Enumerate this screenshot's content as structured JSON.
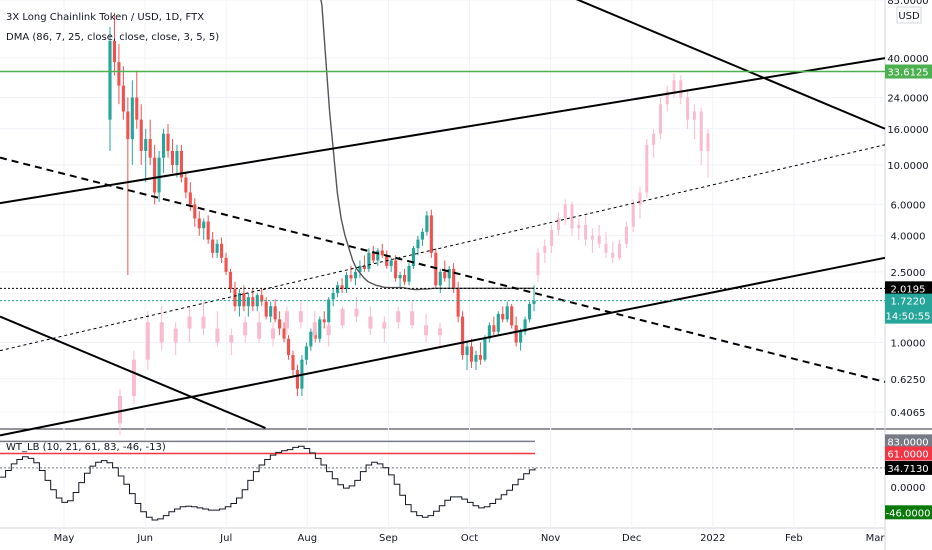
{
  "chart_data": [
    {
      "type": "candlestick",
      "title": "3X Long Chainlink Token / USD, 1D, FTX",
      "indicator_label": "DMA (86, 7, 25, close, close, close, 3, 5, 5)",
      "currency": "USD",
      "y_scale": "log",
      "ylim": [
        0.33,
        85
      ],
      "y_ticks": [
        "85.0000",
        "40.0000",
        "24.0000",
        "16.0000",
        "10.0000",
        "6.0000",
        "4.0000",
        "2.5000",
        "1.0000",
        "0.6250",
        "0.4065"
      ],
      "x_ticks": [
        "May",
        "Jun",
        "Jul",
        "Aug",
        "Sep",
        "Oct",
        "Nov",
        "Dec",
        "2022",
        "Feb",
        "Mar"
      ],
      "price_badges": [
        {
          "label": "33.6125",
          "value": 33.6125,
          "color": "#4caf50"
        },
        {
          "label": "2.0195",
          "value": 2.0195,
          "color": "#000000"
        },
        {
          "label": "1.7220",
          "value": 1.722,
          "color": "#26a69a"
        }
      ],
      "countdown": "14:50:55",
      "candles": [
        [
          18.0,
          60.0,
          12.0,
          50.0
        ],
        [
          50.0,
          72.0,
          32.0,
          38.0
        ],
        [
          38.0,
          48.0,
          22.0,
          28.0
        ],
        [
          28.0,
          36.0,
          18.0,
          20.0
        ],
        [
          20.0,
          24.0,
          2.4,
          14.0
        ],
        [
          14.0,
          30.0,
          10.0,
          24.0
        ],
        [
          24.0,
          34.0,
          16.0,
          18.0
        ],
        [
          18.0,
          22.0,
          10.0,
          12.0
        ],
        [
          12.0,
          16.0,
          8.0,
          14.0
        ],
        [
          14.0,
          18.0,
          10.0,
          11.0
        ],
        [
          11.0,
          13.0,
          6.0,
          7.0
        ],
        [
          7.0,
          12.0,
          6.2,
          11.0
        ],
        [
          11.0,
          16.0,
          9.0,
          15.0
        ],
        [
          15.0,
          17.0,
          11.0,
          12.0
        ],
        [
          12.0,
          14.0,
          9.0,
          10.0
        ],
        [
          10.0,
          13.0,
          8.5,
          12.0
        ],
        [
          12.0,
          13.0,
          8.0,
          8.5
        ],
        [
          8.5,
          9.0,
          6.5,
          7.0
        ],
        [
          7.0,
          8.0,
          5.5,
          6.0
        ],
        [
          6.0,
          6.5,
          4.5,
          5.0
        ],
        [
          5.0,
          5.5,
          4.0,
          4.4
        ],
        [
          4.4,
          5.0,
          3.8,
          4.8
        ],
        [
          4.8,
          5.2,
          3.6,
          3.8
        ],
        [
          3.8,
          4.2,
          3.0,
          3.2
        ],
        [
          3.2,
          3.8,
          3.0,
          3.6
        ],
        [
          3.6,
          3.9,
          2.8,
          3.0
        ],
        [
          3.0,
          3.2,
          2.4,
          2.5
        ],
        [
          2.5,
          2.6,
          1.9,
          2.0
        ],
        [
          2.0,
          2.2,
          1.5,
          1.6
        ],
        [
          1.6,
          2.0,
          1.4,
          1.9
        ],
        [
          1.9,
          2.1,
          1.5,
          1.6
        ],
        [
          1.6,
          1.9,
          1.4,
          1.8
        ],
        [
          1.8,
          2.0,
          1.5,
          1.6
        ],
        [
          1.6,
          1.9,
          1.5,
          1.85
        ],
        [
          1.85,
          2.0,
          1.6,
          1.7
        ],
        [
          1.7,
          1.8,
          1.35,
          1.4
        ],
        [
          1.4,
          1.7,
          1.3,
          1.6
        ],
        [
          1.6,
          1.75,
          1.3,
          1.35
        ],
        [
          1.35,
          1.5,
          1.1,
          1.2
        ],
        [
          1.2,
          1.3,
          1.0,
          1.05
        ],
        [
          1.05,
          1.1,
          0.8,
          0.85
        ],
        [
          0.85,
          0.9,
          0.65,
          0.7
        ],
        [
          0.7,
          0.75,
          0.5,
          0.55
        ],
        [
          0.55,
          0.85,
          0.5,
          0.8
        ],
        [
          0.8,
          1.0,
          0.75,
          0.95
        ],
        [
          0.95,
          1.2,
          0.9,
          1.15
        ],
        [
          1.15,
          1.3,
          1.0,
          1.05
        ],
        [
          1.05,
          1.4,
          1.0,
          1.35
        ],
        [
          1.35,
          1.5,
          1.2,
          1.3
        ],
        [
          1.3,
          1.8,
          1.25,
          1.75
        ],
        [
          1.75,
          2.0,
          1.6,
          1.9
        ],
        [
          1.9,
          2.2,
          1.8,
          2.1
        ],
        [
          2.1,
          2.3,
          1.9,
          2.0
        ],
        [
          2.0,
          2.5,
          1.9,
          2.4
        ],
        [
          2.4,
          2.7,
          2.2,
          2.3
        ],
        [
          2.3,
          2.6,
          2.1,
          2.5
        ],
        [
          2.5,
          2.9,
          2.3,
          2.7
        ],
        [
          2.7,
          3.1,
          2.5,
          2.6
        ],
        [
          2.6,
          3.4,
          2.5,
          3.2
        ],
        [
          3.2,
          3.5,
          2.8,
          2.9
        ],
        [
          2.9,
          3.4,
          2.7,
          3.3
        ],
        [
          3.3,
          3.6,
          3.0,
          3.1
        ],
        [
          3.1,
          3.3,
          2.6,
          2.7
        ],
        [
          2.7,
          3.0,
          2.5,
          2.9
        ],
        [
          2.9,
          3.1,
          2.2,
          2.3
        ],
        [
          2.3,
          2.5,
          2.0,
          2.4
        ],
        [
          2.4,
          2.6,
          2.1,
          2.2
        ],
        [
          2.2,
          2.8,
          2.1,
          2.7
        ],
        [
          2.7,
          3.5,
          2.6,
          3.4
        ],
        [
          3.4,
          4.0,
          3.1,
          3.8
        ],
        [
          3.8,
          4.4,
          3.5,
          4.2
        ],
        [
          4.2,
          5.5,
          4.0,
          5.2
        ],
        [
          5.2,
          5.6,
          3.0,
          3.2
        ],
        [
          3.2,
          3.4,
          2.0,
          2.1
        ],
        [
          2.1,
          2.6,
          1.9,
          2.5
        ],
        [
          2.5,
          2.9,
          2.2,
          2.3
        ],
        [
          2.3,
          2.7,
          2.0,
          2.6
        ],
        [
          2.6,
          2.8,
          1.9,
          2.0
        ],
        [
          2.0,
          2.2,
          1.3,
          1.4
        ],
        [
          1.4,
          1.5,
          0.8,
          0.85
        ],
        [
          0.85,
          1.0,
          0.7,
          0.95
        ],
        [
          0.95,
          1.05,
          0.72,
          0.78
        ],
        [
          0.78,
          0.9,
          0.7,
          0.85
        ],
        [
          0.85,
          1.0,
          0.75,
          0.8
        ],
        [
          0.8,
          1.1,
          0.78,
          1.05
        ],
        [
          1.05,
          1.3,
          1.0,
          1.25
        ],
        [
          1.25,
          1.4,
          1.1,
          1.15
        ],
        [
          1.15,
          1.5,
          1.1,
          1.45
        ],
        [
          1.45,
          1.6,
          1.3,
          1.35
        ],
        [
          1.35,
          1.7,
          1.3,
          1.6
        ],
        [
          1.6,
          1.65,
          1.2,
          1.25
        ],
        [
          1.25,
          1.4,
          0.95,
          1.0
        ],
        [
          1.0,
          1.2,
          0.9,
          1.15
        ],
        [
          1.15,
          1.4,
          1.1,
          1.35
        ],
        [
          1.35,
          1.7,
          1.3,
          1.65
        ],
        [
          1.65,
          2.1,
          1.5,
          1.722
        ]
      ],
      "ghost_candles": [
        [
          2.4,
          3.4,
          2.2,
          3.2
        ],
        [
          3.2,
          3.8,
          2.8,
          3.5
        ],
        [
          3.5,
          4.6,
          3.2,
          4.3
        ],
        [
          4.3,
          5.4,
          4.0,
          5.0
        ],
        [
          5.0,
          6.4,
          4.6,
          6.0
        ],
        [
          6.0,
          6.2,
          4.0,
          4.4
        ],
        [
          4.4,
          5.0,
          3.8,
          4.6
        ],
        [
          4.6,
          5.2,
          3.5,
          3.8
        ],
        [
          3.8,
          4.4,
          3.2,
          4.0
        ],
        [
          4.0,
          4.6,
          3.4,
          3.6
        ],
        [
          3.6,
          4.2,
          3.0,
          3.2
        ],
        [
          3.2,
          3.7,
          2.8,
          3.0
        ],
        [
          3.0,
          3.8,
          2.9,
          3.6
        ],
        [
          3.6,
          4.8,
          3.4,
          4.5
        ],
        [
          4.5,
          6.4,
          4.2,
          6.0
        ],
        [
          6.0,
          7.5,
          5.0,
          7.0
        ],
        [
          7.0,
          14.0,
          6.5,
          13.0
        ],
        [
          13.0,
          16.0,
          11.0,
          15.0
        ],
        [
          15.0,
          24.0,
          14.0,
          22.0
        ],
        [
          22.0,
          28.0,
          20.0,
          26.0
        ],
        [
          26.0,
          33.0,
          24.0,
          30.0
        ],
        [
          30.0,
          32.0,
          22.0,
          24.0
        ],
        [
          24.0,
          26.0,
          16.0,
          18.0
        ],
        [
          18.0,
          22.0,
          14.0,
          20.0
        ],
        [
          20.0,
          21.0,
          10.0,
          12.0
        ],
        [
          12.0,
          16.0,
          8.5,
          15.0
        ]
      ],
      "ghost_lower_candles": [
        [
          0.35,
          0.55,
          0.3,
          0.5
        ],
        [
          0.5,
          0.9,
          0.45,
          0.8
        ],
        [
          0.8,
          1.5,
          0.7,
          1.3
        ],
        [
          1.3,
          1.6,
          0.9,
          1.0
        ],
        [
          1.0,
          1.3,
          0.85,
          1.2
        ],
        [
          1.2,
          1.6,
          1.0,
          1.4
        ],
        [
          1.4,
          1.7,
          1.1,
          1.2
        ],
        [
          1.2,
          1.5,
          0.95,
          1.0
        ],
        [
          1.0,
          1.2,
          0.85,
          1.1
        ],
        [
          1.1,
          1.4,
          1.0,
          1.3
        ],
        [
          1.3,
          1.5,
          1.0,
          1.05
        ],
        [
          1.05,
          1.3,
          0.95,
          1.2
        ],
        [
          1.2,
          1.6,
          1.1,
          1.5
        ],
        [
          1.5,
          1.7,
          1.2,
          1.3
        ],
        [
          1.3,
          1.5,
          1.0,
          1.1
        ],
        [
          1.1,
          1.3,
          0.95,
          1.25
        ],
        [
          1.25,
          1.6,
          1.2,
          1.55
        ],
        [
          1.55,
          1.8,
          1.3,
          1.4
        ],
        [
          1.4,
          1.6,
          1.1,
          1.2
        ],
        [
          1.2,
          1.4,
          1.0,
          1.3
        ],
        [
          1.3,
          1.6,
          1.2,
          1.5
        ],
        [
          1.5,
          1.7,
          1.2,
          1.25
        ],
        [
          1.25,
          1.45,
          1.0,
          1.1
        ],
        [
          1.1,
          1.3,
          0.95,
          1.2
        ]
      ],
      "dma_curve": [
        [
          61.0,
          120.0
        ],
        [
          60.0,
          80.0
        ],
        [
          58.0,
          40.0
        ],
        [
          56.0,
          20.0
        ],
        [
          54.0,
          12.0
        ],
        [
          52.0,
          7.0
        ],
        [
          50.0,
          5.0
        ],
        [
          49.0,
          4.0
        ],
        [
          48.0,
          3.4
        ],
        [
          47.0,
          2.9
        ],
        [
          46.0,
          2.6
        ],
        [
          45.0,
          2.45
        ],
        [
          44.0,
          2.3
        ],
        [
          43.0,
          2.2
        ],
        [
          42.0,
          2.15
        ],
        [
          41.0,
          2.1
        ],
        [
          40.0,
          2.08
        ],
        [
          39.0,
          2.05
        ],
        [
          38.0,
          2.04
        ],
        [
          37.0,
          2.04
        ],
        [
          36.0,
          2.04
        ],
        [
          35.0,
          2.04
        ],
        [
          34.0,
          2.04
        ],
        [
          33.0,
          2.02
        ],
        [
          32.0,
          2.0
        ],
        [
          31.0,
          1.99
        ],
        [
          30.0,
          1.99
        ],
        [
          29.0,
          2.0
        ],
        [
          28.0,
          2.0
        ],
        [
          27.0,
          2.01
        ],
        [
          26.0,
          2.02
        ],
        [
          25.0,
          2.02
        ],
        [
          24.0,
          2.02
        ],
        [
          23.0,
          2.02
        ],
        [
          22.0,
          2.02
        ],
        [
          21.0,
          2.02
        ],
        [
          20.0,
          2.02
        ],
        [
          19.0,
          2.02
        ],
        [
          18.0,
          2.02
        ],
        [
          17.0,
          2.02
        ],
        [
          16.0,
          2.02
        ],
        [
          15.0,
          2.02
        ],
        [
          14.0,
          2.02
        ],
        [
          13.0,
          2.02
        ],
        [
          12.0,
          2.02
        ],
        [
          11.0,
          2.02
        ],
        [
          10.0,
          2.02
        ],
        [
          9.0,
          2.02
        ],
        [
          8.0,
          2.02
        ],
        [
          7.0,
          2.02
        ],
        [
          6.0,
          2.02
        ],
        [
          5.0,
          2.02
        ],
        [
          4.0,
          2.02
        ],
        [
          3.0,
          2.02
        ],
        [
          2.0,
          2.02
        ],
        [
          1.0,
          2.02
        ],
        [
          0.0,
          2.0195
        ]
      ],
      "trendlines": [
        {
          "style": "solid",
          "points": [
            [
              0,
              6.1
            ],
            [
              100,
              40.0
            ]
          ]
        },
        {
          "style": "solid",
          "points": [
            [
              0,
              0.3
            ],
            [
              100,
              3.0
            ]
          ]
        },
        {
          "style": "dashed",
          "points": [
            [
              0,
              11.0
            ],
            [
              100,
              0.6
            ]
          ]
        },
        {
          "style": "dotted",
          "points": [
            [
              0,
              0.9
            ],
            [
              100,
              13.0
            ]
          ]
        },
        {
          "style": "solid",
          "points": [
            [
              55,
              140.0
            ],
            [
              100,
              16.0
            ]
          ]
        },
        {
          "style": "solid",
          "points": [
            [
              0,
              1.4
            ],
            [
              30,
              0.33
            ]
          ]
        }
      ],
      "h_lines": [
        {
          "value": 33.6125,
          "color": "#4caf50",
          "style": "solid"
        },
        {
          "value": 2.0195,
          "color": "#000000",
          "style": "dotted"
        },
        {
          "value": 1.722,
          "color": "#26a69a",
          "style": "dotted"
        }
      ]
    },
    {
      "type": "line",
      "title": "WT_LB (10, 21, 61, 83, -46, -13)",
      "ylim": [
        -60,
        100
      ],
      "y_ticks": [
        "0.0000"
      ],
      "level_badges": [
        {
          "label": "83.0000",
          "value": 83,
          "color": "#787b86"
        },
        {
          "label": "61.0000",
          "value": 61,
          "color": "#f23645"
        },
        {
          "label": "34.7130",
          "value": 34.713,
          "color": "#000000"
        },
        {
          "label": "-46.0000",
          "value": -46,
          "color": "#0b7a0b"
        }
      ],
      "levels": [
        {
          "value": 83,
          "color": "#787b86",
          "style": "solid"
        },
        {
          "value": 61,
          "color": "#f23645",
          "style": "solid"
        },
        {
          "value": 34.713,
          "color": "#787b86",
          "style": "dotted"
        }
      ],
      "values": [
        18,
        30,
        42,
        50,
        55,
        52,
        44,
        30,
        12,
        -5,
        -20,
        -28,
        -25,
        -10,
        8,
        25,
        38,
        45,
        48,
        44,
        35,
        20,
        5,
        -12,
        -30,
        -45,
        -55,
        -60,
        -58,
        -52,
        -45,
        -40,
        -36,
        -35,
        -36,
        -38,
        -40,
        -42,
        -42,
        -40,
        -36,
        -30,
        -20,
        -5,
        12,
        28,
        40,
        50,
        58,
        63,
        66,
        68,
        72,
        74,
        70,
        62,
        52,
        40,
        28,
        15,
        4,
        -2,
        2,
        12,
        28,
        40,
        45,
        42,
        35,
        22,
        5,
        -15,
        -32,
        -45,
        -52,
        -55,
        -52,
        -44,
        -34,
        -24,
        -18,
        -18,
        -22,
        -28,
        -34,
        -38,
        -36,
        -30,
        -22,
        -14,
        -6,
        4,
        14,
        24,
        31,
        34.713
      ]
    }
  ]
}
